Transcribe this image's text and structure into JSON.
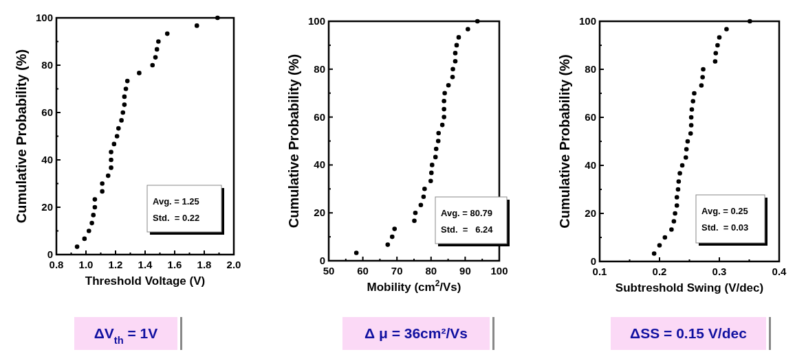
{
  "chart_data": [
    {
      "type": "scatter",
      "xlabel": "Threshold Voltage (V)",
      "ylabel": "Cumulative Probability (%)",
      "xlim": [
        0.8,
        2.0
      ],
      "xticks": [
        {
          "value": 0.8,
          "label": "0.8"
        },
        {
          "value": 1.0,
          "label": "1.0"
        },
        {
          "value": 1.2,
          "label": "1.2"
        },
        {
          "value": 1.4,
          "label": "1.4"
        },
        {
          "value": 1.6,
          "label": "1.6"
        },
        {
          "value": 1.8,
          "label": "1.8"
        },
        {
          "value": 2.0,
          "label": "2.0"
        }
      ],
      "ylim": [
        0,
        100
      ],
      "yticks": [
        0,
        20,
        40,
        60,
        80,
        100
      ],
      "marker": "circle",
      "grid": false,
      "series": [
        {
          "color": "#000000",
          "x": [
            0.94,
            0.99,
            1.02,
            1.04,
            1.05,
            1.06,
            1.06,
            1.11,
            1.11,
            1.15,
            1.17,
            1.17,
            1.17,
            1.19,
            1.21,
            1.22,
            1.24,
            1.25,
            1.26,
            1.26,
            1.27,
            1.28,
            1.36,
            1.45,
            1.47,
            1.48,
            1.49,
            1.55,
            1.75,
            1.89
          ],
          "values": [
            3.3,
            6.7,
            10,
            13.3,
            16.7,
            20,
            23.3,
            26.7,
            30,
            33.3,
            36.7,
            40,
            43.3,
            46.7,
            50,
            53.3,
            56.7,
            60,
            63.3,
            66.7,
            70,
            73.3,
            76.7,
            80,
            83.3,
            86.7,
            90,
            93.3,
            96.7,
            100
          ]
        }
      ],
      "annotations": [
        "Avg. = 1.25",
        "Std.  = 0.22",
        "ΔV$_{th}$ = 1V"
      ]
    },
    {
      "type": "scatter",
      "xlabel": "Mobility (cm$^{2}$/Vs)",
      "ylabel": "Cumulative Probability (%)",
      "xlim": [
        50,
        100
      ],
      "xticks": [
        50,
        60,
        70,
        80,
        90,
        100
      ],
      "ylim": [
        0,
        100
      ],
      "yticks": [
        0,
        20,
        40,
        60,
        80,
        100
      ],
      "marker": "circle",
      "grid": false,
      "series": [
        {
          "color": "#000000",
          "x": [
            58.1,
            67.3,
            68.6,
            69.3,
            75.1,
            75.4,
            77.0,
            77.8,
            78.1,
            79.9,
            80.1,
            80.3,
            81.3,
            81.5,
            82.1,
            82.2,
            83.3,
            83.8,
            83.8,
            83.8,
            84.0,
            85.1,
            86.3,
            86.4,
            87.1,
            87.1,
            87.5,
            88.1,
            90.8,
            93.6
          ],
          "values": [
            3.3,
            6.7,
            10,
            13.3,
            16.7,
            20,
            23.3,
            26.7,
            30,
            33.3,
            36.7,
            40,
            43.3,
            46.7,
            50,
            53.3,
            56.7,
            60,
            63.3,
            66.7,
            70,
            73.3,
            76.7,
            80,
            83.3,
            86.7,
            90,
            93.3,
            96.7,
            100
          ]
        }
      ],
      "annotations": [
        "Avg. = 80.79",
        "Std.  =   6.24",
        "Δ μ = 36cm²/Vs"
      ]
    },
    {
      "type": "scatter",
      "xlabel": "Subtreshold Swing (V/dec)",
      "ylabel": "Cumulative Probability (%)",
      "xlim": [
        0.1,
        0.4
      ],
      "xticks": [
        0.1,
        0.2,
        0.3,
        0.4
      ],
      "ylim": [
        0,
        100
      ],
      "yticks": [
        0,
        20,
        40,
        60,
        80,
        100
      ],
      "marker": "circle",
      "grid": false,
      "series": [
        {
          "color": "#000000",
          "x": [
            0.191,
            0.2,
            0.209,
            0.22,
            0.224,
            0.226,
            0.229,
            0.229,
            0.231,
            0.232,
            0.234,
            0.238,
            0.244,
            0.245,
            0.247,
            0.252,
            0.253,
            0.253,
            0.254,
            0.256,
            0.258,
            0.27,
            0.272,
            0.273,
            0.293,
            0.294,
            0.297,
            0.3,
            0.312,
            0.351
          ],
          "values": [
            3.3,
            6.7,
            10,
            13.3,
            16.7,
            20,
            23.3,
            26.7,
            30,
            33.3,
            36.7,
            40,
            43.3,
            46.7,
            50,
            53.3,
            56.7,
            60,
            63.3,
            66.7,
            70,
            73.3,
            76.7,
            80,
            83.3,
            86.7,
            90,
            93.3,
            96.7,
            100
          ]
        }
      ],
      "annotations": [
        "Avg. = 0.25",
        "Std.  = 0.03",
        "ΔSS = 0.15 V/dec"
      ]
    }
  ]
}
